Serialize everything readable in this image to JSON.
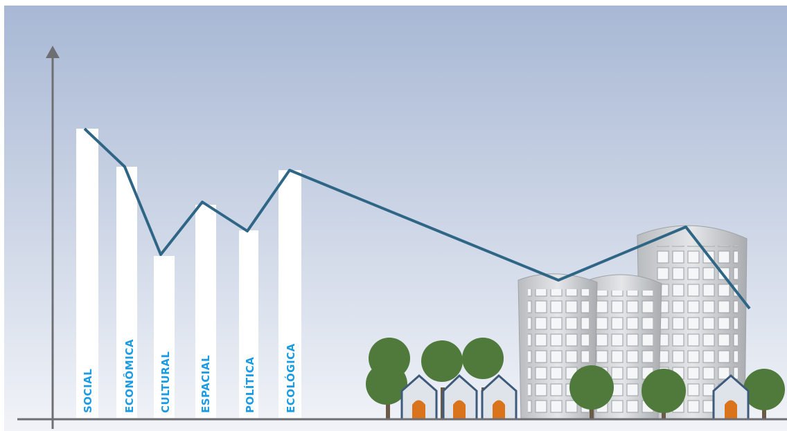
{
  "labels": [
    "SOCIAL",
    "ECONÔMICA",
    "CULTURAL",
    "ESPACIAL",
    "POLÍTICA",
    "ECOLÓGICA"
  ]
}
